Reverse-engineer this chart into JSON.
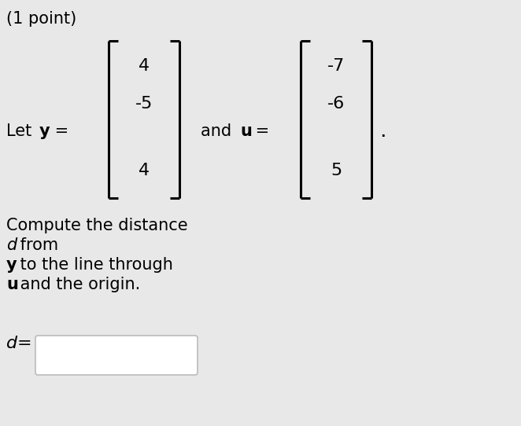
{
  "bg_color": "#e8e8e8",
  "title_text": "(1 point)",
  "title_fontsize": 15,
  "body_fontsize": 15,
  "math_fontsize": 16,
  "y_values": [
    "4",
    "-5",
    "",
    "4"
  ],
  "u_values": [
    "-7",
    "-6",
    "",
    "5"
  ],
  "line1": "Compute the distance",
  "line2_italic": "d",
  "line2_rest": " from",
  "line3_bold": "y",
  "line3_rest": " to the line through",
  "line4_bold": "u",
  "line4_rest": " and the origin."
}
